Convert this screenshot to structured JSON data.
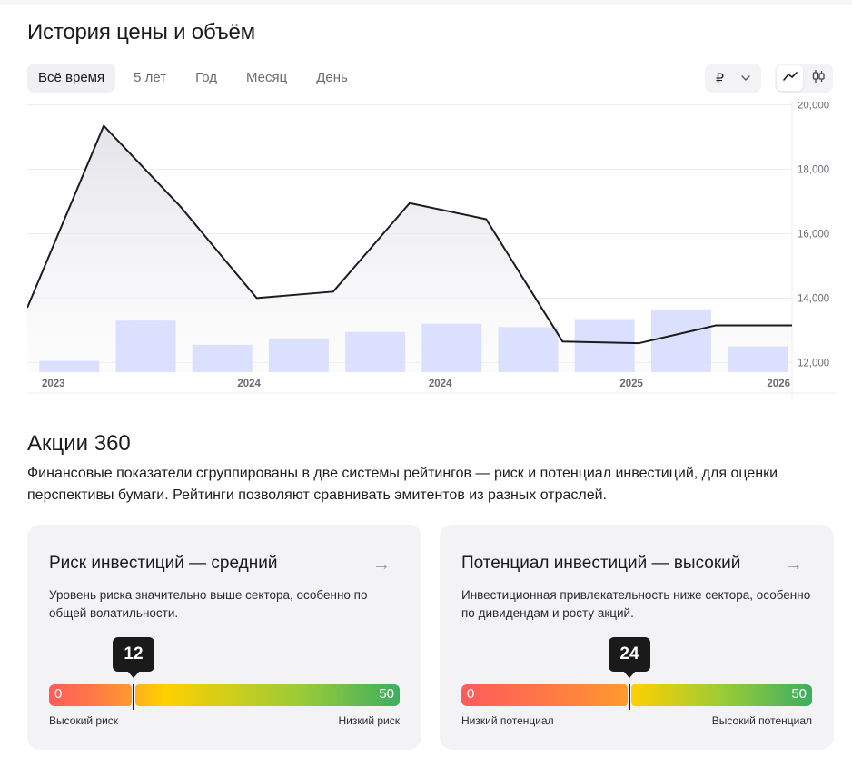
{
  "header": {
    "title": "История цены и объём"
  },
  "period_tabs": [
    {
      "label": "Всё время",
      "active": true
    },
    {
      "label": "5 лет",
      "active": false
    },
    {
      "label": "Год",
      "active": false
    },
    {
      "label": "Месяц",
      "active": false
    },
    {
      "label": "День",
      "active": false
    }
  ],
  "currency": {
    "value": "₽",
    "icon": "chevron-down-icon"
  },
  "view_toggle": [
    {
      "icon": "line-chart-icon",
      "active": true
    },
    {
      "icon": "candlestick-icon",
      "active": false
    }
  ],
  "chart_data": {
    "type": "line",
    "title": "",
    "xlabel": "",
    "ylabel": "",
    "ylim": [
      11700,
      20100
    ],
    "yticks": [
      12000,
      14000,
      16000,
      18000,
      20000
    ],
    "ytick_labels": [
      "12,000",
      "14,000",
      "16,000",
      "18,000",
      "20,000"
    ],
    "xtick_labels": [
      "2023",
      "2024",
      "2024",
      "2025",
      "2026"
    ],
    "grid": true,
    "y_axis_side": "right",
    "price": {
      "x": [
        0,
        1,
        2,
        3,
        4,
        5,
        6,
        7,
        8,
        9,
        10
      ],
      "y": [
        13700,
        19350,
        16850,
        14000,
        14200,
        16950,
        16450,
        12650,
        12600,
        13150,
        13150
      ]
    },
    "volume": {
      "x": [
        0.55,
        1.55,
        2.55,
        3.55,
        4.55,
        5.55,
        6.55,
        7.55,
        8.55,
        9.55
      ],
      "y": [
        12050,
        13300,
        12550,
        12750,
        12950,
        13200,
        13100,
        13350,
        13650,
        12500
      ]
    },
    "colors": {
      "line": "#1c1c1f",
      "area": "#e9e9ee",
      "volume": "#d6dbff",
      "grid": "#ececf0"
    }
  },
  "section": {
    "title": "Акции 360",
    "description": "Финансовые показатели сгруппированы в две системы рейтингов — риск и потенциал инвестиций, для оценки перспективы бумаги. Рейтинги позволяют сравнивать эмитентов из разных отраслей."
  },
  "cards": [
    {
      "title": "Риск инвестиций — средний",
      "arrow": "→",
      "description": "Уровень риска значительно выше сектора, особенно по общей волатильности.",
      "value": 12,
      "value_label": "12",
      "min": 0,
      "max": 50,
      "min_label": "0",
      "max_label": "50",
      "left_label": "Высокий риск",
      "right_label": "Низкий риск"
    },
    {
      "title": "Потенциал инвестиций — высокий",
      "arrow": "→",
      "description": "Инвестиционная привлекательность ниже сектора, особенно по дивидендам и росту акций.",
      "value": 24,
      "value_label": "24",
      "min": 0,
      "max": 50,
      "min_label": "0",
      "max_label": "50",
      "left_label": "Низкий потенциал",
      "right_label": "Высокий потенциал"
    }
  ]
}
